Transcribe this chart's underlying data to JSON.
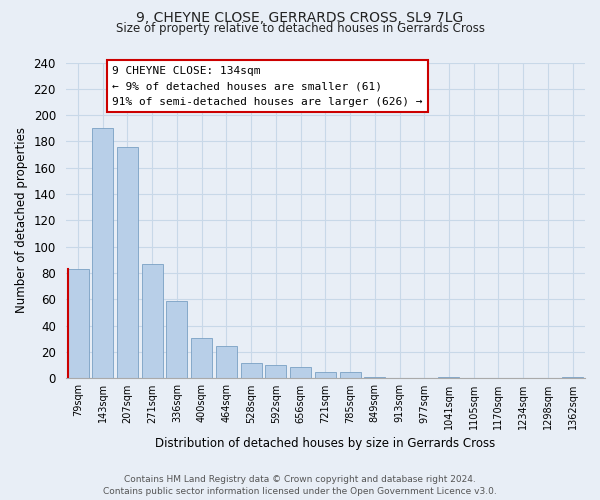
{
  "title1": "9, CHEYNE CLOSE, GERRARDS CROSS, SL9 7LG",
  "title2": "Size of property relative to detached houses in Gerrards Cross",
  "xlabel": "Distribution of detached houses by size in Gerrards Cross",
  "ylabel": "Number of detached properties",
  "bin_labels": [
    "79sqm",
    "143sqm",
    "207sqm",
    "271sqm",
    "336sqm",
    "400sqm",
    "464sqm",
    "528sqm",
    "592sqm",
    "656sqm",
    "721sqm",
    "785sqm",
    "849sqm",
    "913sqm",
    "977sqm",
    "1041sqm",
    "1105sqm",
    "1170sqm",
    "1234sqm",
    "1298sqm",
    "1362sqm"
  ],
  "bar_heights": [
    83,
    190,
    176,
    87,
    59,
    31,
    25,
    12,
    10,
    9,
    5,
    5,
    1,
    0,
    0,
    1,
    0,
    0,
    0,
    0,
    1
  ],
  "bar_color": "#b8cfe8",
  "bar_edge_color": "#7aa0c4",
  "highlight_bar_index": 0,
  "highlight_line_color": "#cc0000",
  "ylim": [
    0,
    240
  ],
  "yticks": [
    0,
    20,
    40,
    60,
    80,
    100,
    120,
    140,
    160,
    180,
    200,
    220,
    240
  ],
  "annotation_line1": "9 CHEYNE CLOSE: 134sqm",
  "annotation_line2": "← 9% of detached houses are smaller (61)",
  "annotation_line3": "91% of semi-detached houses are larger (626) →",
  "footer_text": "Contains HM Land Registry data © Crown copyright and database right 2024.\nContains public sector information licensed under the Open Government Licence v3.0.",
  "grid_color": "#c8d8e8",
  "background_color": "#e8eef6"
}
